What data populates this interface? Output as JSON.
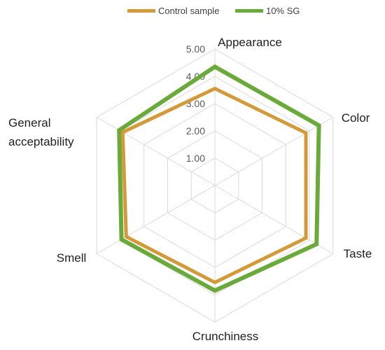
{
  "chart_data": {
    "type": "radar",
    "title": "",
    "categories": [
      "Appearance",
      "Color",
      "Taste",
      "Crunchiness",
      "Smell",
      "General acceptability"
    ],
    "rlim": [
      0,
      5
    ],
    "ticks": [
      "1.00",
      "2.00",
      "3.00",
      "4.00",
      "5.00"
    ],
    "grid": true,
    "legend_position": "top",
    "series": [
      {
        "name": "Control sample",
        "color": "#d49a3a",
        "values": [
          3.55,
          3.85,
          3.85,
          3.55,
          3.75,
          3.9
        ]
      },
      {
        "name": "10% SG",
        "color": "#6aaa3a",
        "values": [
          4.35,
          4.4,
          4.3,
          3.85,
          3.95,
          4.05
        ]
      }
    ]
  }
}
